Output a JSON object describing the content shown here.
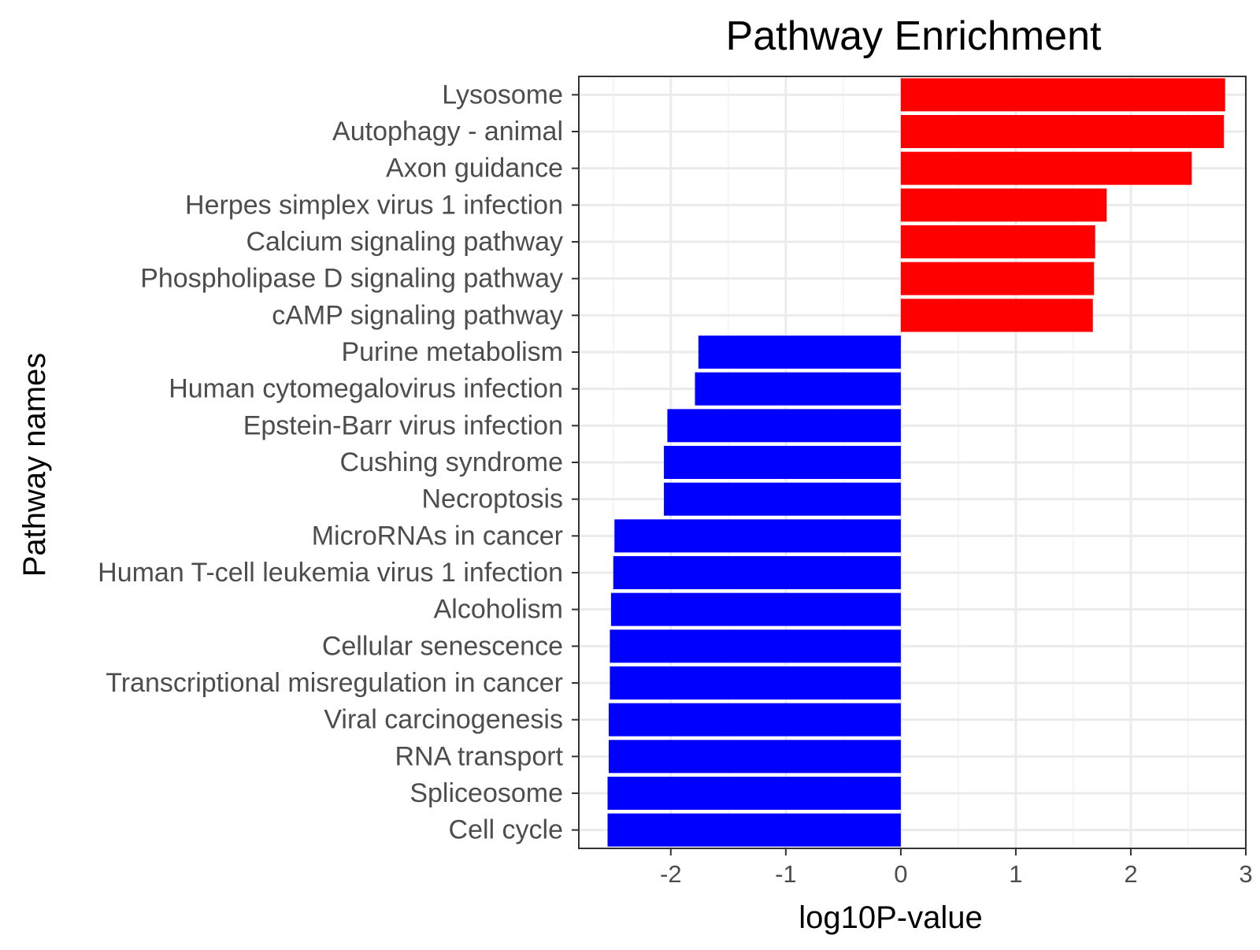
{
  "chart_data": {
    "type": "bar",
    "orientation": "horizontal",
    "title": "Pathway Enrichment",
    "xlabel": "log10P-value",
    "ylabel": "Pathway names",
    "xlim": [
      -2.8,
      3.0
    ],
    "xticks": [
      -2,
      -1,
      0,
      1,
      2,
      3
    ],
    "xtick_labels": [
      "-2",
      "-1",
      "0",
      "1",
      "2",
      "3"
    ],
    "grid": true,
    "legend": "none",
    "colors": {
      "positive": "#ff0000",
      "negative": "#0000ff"
    },
    "categories": [
      "Lysosome",
      "Autophagy - animal",
      "Axon guidance",
      "Herpes simplex virus 1 infection",
      "Calcium signaling pathway",
      "Phospholipase D signaling pathway",
      "cAMP signaling pathway",
      "Purine metabolism",
      "Human cytomegalovirus infection",
      "Epstein-Barr virus infection",
      "Cushing syndrome",
      "Necroptosis",
      "MicroRNAs in cancer",
      "Human T-cell leukemia virus 1 infection",
      "Alcoholism",
      "Cellular senescence",
      "Transcriptional misregulation in cancer",
      "Viral carcinogenesis",
      "RNA transport",
      "Spliceosome",
      "Cell cycle"
    ],
    "values": [
      2.82,
      2.81,
      2.53,
      1.79,
      1.69,
      1.68,
      1.67,
      -1.76,
      -1.79,
      -2.03,
      -2.06,
      -2.06,
      -2.49,
      -2.5,
      -2.52,
      -2.53,
      -2.53,
      -2.54,
      -2.54,
      -2.55,
      -2.55
    ]
  }
}
